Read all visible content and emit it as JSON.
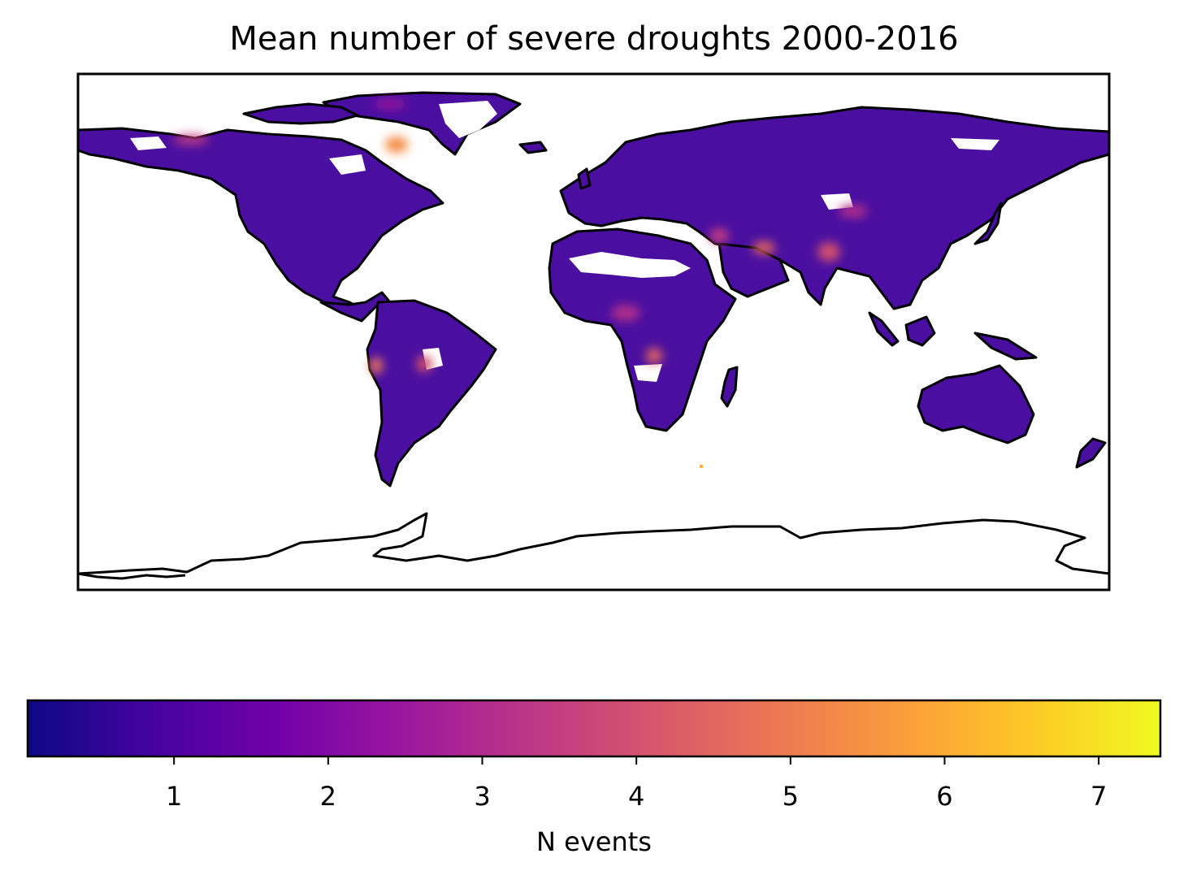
{
  "title": "Mean number of severe droughts 2000-2016",
  "colorbar": {
    "label": "N events",
    "colormap": "plasma",
    "min": 0.05,
    "max": 7.4,
    "ticks": [
      1,
      2,
      3,
      4,
      5,
      6,
      7
    ],
    "tick_labels": [
      "1",
      "2",
      "3",
      "4",
      "5",
      "6",
      "7"
    ],
    "stops": [
      "#0d0887",
      "#46039f",
      "#7201a8",
      "#9c179e",
      "#bd3786",
      "#d8576b",
      "#ed7953",
      "#fb9f3a",
      "#fdca26",
      "#f0f921"
    ]
  },
  "map": {
    "projection": "PlateCarree",
    "typical_value_color": "#4a0fa0",
    "hotspots": [
      {
        "region": "Hudson Bay / Baffin",
        "value": 4.5
      },
      {
        "region": "Northern Canada",
        "value": 3.0
      },
      {
        "region": "Peru / Andes",
        "value": 4.3
      },
      {
        "region": "Central Brazil",
        "value": 3.2
      },
      {
        "region": "Central Africa (DRC)",
        "value": 4.2
      },
      {
        "region": "Sahel / West Africa",
        "value": 3.0
      },
      {
        "region": "Arabian Peninsula",
        "value": 3.8
      },
      {
        "region": "Iran / Pakistan",
        "value": 3.5
      },
      {
        "region": "Northern India",
        "value": 3.3
      },
      {
        "region": "China",
        "value": 3.0
      },
      {
        "region": "Southern Indian Ocean island",
        "value": 6.0
      }
    ]
  }
}
